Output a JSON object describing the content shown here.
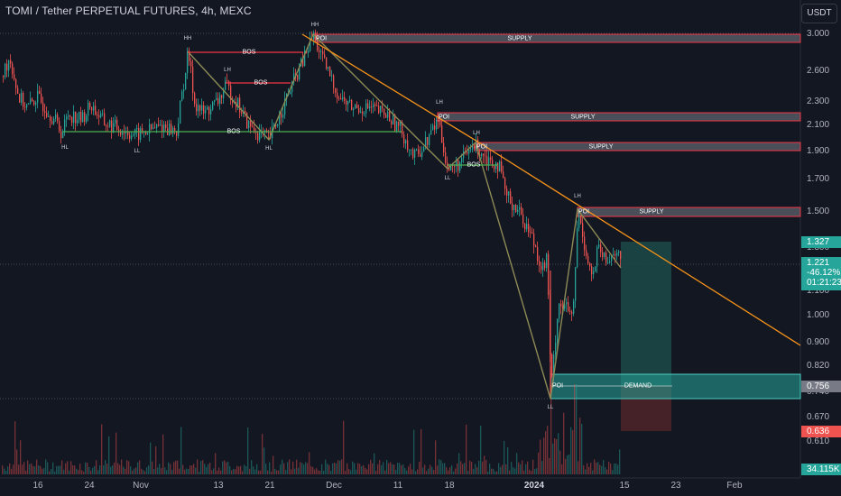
{
  "header": {
    "title": "TOMI / Tether PERPETUAL FUTURES, 4h, MEXC",
    "currency_button": "USDT"
  },
  "price_axis": {
    "ticks": [
      "3.000",
      "2.600",
      "2.300",
      "2.100",
      "1.900",
      "1.700",
      "1.500",
      "1.300",
      "1.100",
      "1.000",
      "0.900",
      "0.820",
      "0.740",
      "0.670",
      "0.610"
    ],
    "scale": "log"
  },
  "time_axis": {
    "ticks": [
      "16",
      "24",
      "Nov",
      "13",
      "21",
      "Dec",
      "11",
      "18",
      "2024",
      "15",
      "23",
      "Feb"
    ]
  },
  "price_tags": {
    "last_price": "1.221",
    "change_pct": "-46.12%",
    "countdown": "01:21:23",
    "target_price": "1.327",
    "entry_price": "0.756",
    "stop_price": "0.636",
    "volume": "34.115K"
  },
  "zone_labels": {
    "poi": "POI",
    "supply": "SUPPLY",
    "demand": "DEMAND",
    "bos": "BOS"
  },
  "swing_labels": {
    "hh": "HH",
    "lh": "LH",
    "hl": "HL",
    "ll": "LL"
  },
  "colors": {
    "background": "#131722",
    "candle_up": "#26a69a",
    "candle_down": "#ef5350",
    "trendline": "#f7931a",
    "zigzag": "#8d8a55",
    "bos_red": "#f23645",
    "bos_green": "#4caf50",
    "supply_zone": "#787b86",
    "demand_zone": "#26a69a",
    "target_zone": "#1c4a48",
    "stop_zone": "#4a2428"
  },
  "chart_data": {
    "type": "candlestick",
    "symbol": "TOMI/USDT Perpetual",
    "timeframe": "4h",
    "exchange": "MEXC",
    "scale": "log",
    "y_range": [
      0.57,
      3.05
    ],
    "swing_points": [
      {
        "label": "HL",
        "date": "Oct 19",
        "price": 2.04
      },
      {
        "label": "HH",
        "date": "Nov 7",
        "price": 2.8
      },
      {
        "label": "LL",
        "date": "Nov 1",
        "price": 1.99
      },
      {
        "label": "LH",
        "date": "Nov 13",
        "price": 2.45
      },
      {
        "label": "HL",
        "date": "Nov 21",
        "price": 1.99
      },
      {
        "label": "HH",
        "date": "Nov 28",
        "price": 3.0
      },
      {
        "label": "LH",
        "date": "Dec 18",
        "price": 2.15
      },
      {
        "label": "LL",
        "date": "Dec 19",
        "price": 1.74
      },
      {
        "label": "LH",
        "date": "Dec 23",
        "price": 1.95
      },
      {
        "label": "LL",
        "date": "Jan 1",
        "price": 0.74
      },
      {
        "label": "LH",
        "date": "Jan 5",
        "price": 1.5
      }
    ],
    "zones": [
      {
        "type": "SUPPLY",
        "tag": "POI",
        "low": 2.93,
        "high": 3.01
      },
      {
        "type": "SUPPLY",
        "tag": "POI",
        "low": 2.14,
        "high": 2.19
      },
      {
        "type": "SUPPLY",
        "tag": "POI",
        "low": 1.91,
        "high": 1.97
      },
      {
        "type": "SUPPLY",
        "tag": "POI",
        "low": 1.48,
        "high": 1.52
      },
      {
        "type": "DEMAND",
        "tag": "POI",
        "low": 0.715,
        "high": 0.8
      }
    ],
    "trade_setup": {
      "entry": 0.756,
      "target": 1.327,
      "stop": 0.636
    },
    "last_price": 1.221,
    "change_pct": -46.12,
    "volume": "34.115K"
  }
}
